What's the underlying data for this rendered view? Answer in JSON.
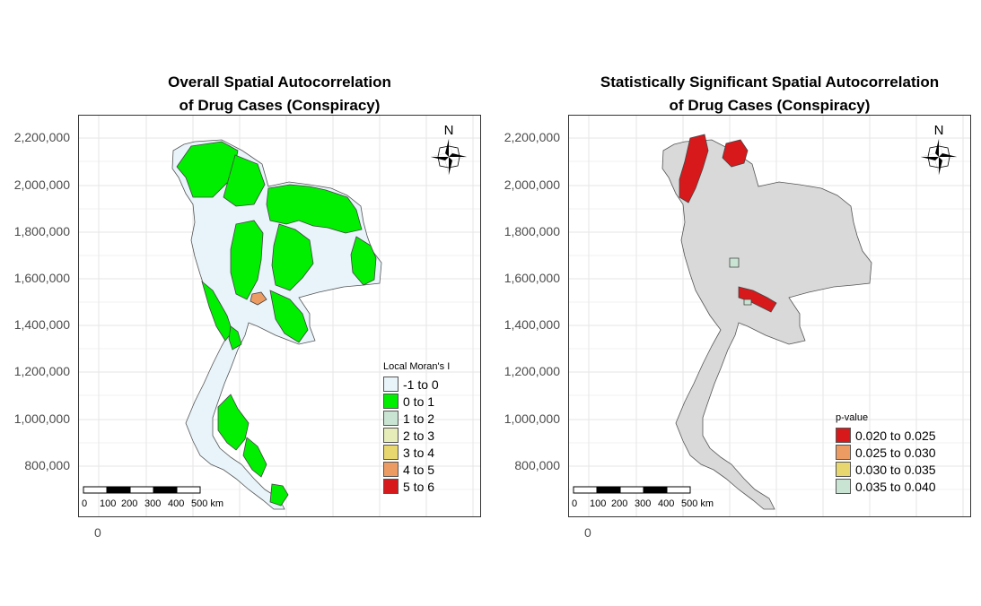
{
  "panels": [
    {
      "title_line1": "Overall Spatial Autocorrelation",
      "title_line2": "of Drug Cases (Conspiracy)",
      "legend_title": "Local Moran's I",
      "legend": [
        {
          "label": "-1 to 0",
          "color": "#e8f4fa"
        },
        {
          "label": "0 to 1",
          "color": "#00ee00"
        },
        {
          "label": "1 to 2",
          "color": "#c9e4d2"
        },
        {
          "label": "2 to 3",
          "color": "#e6edb8"
        },
        {
          "label": "3 to 4",
          "color": "#e7d76e"
        },
        {
          "label": "4 to 5",
          "color": "#ec9c62"
        },
        {
          "label": "5 to 6",
          "color": "#d7191c"
        }
      ],
      "base_color": "#e8f4fa"
    },
    {
      "title_line1": "Statistically Significant Spatial Autocorrelation",
      "title_line2": "of Drug Cases (Conspiracy)",
      "legend_title": "p-value",
      "legend": [
        {
          "label": "0.020 to 0.025",
          "color": "#d7191c"
        },
        {
          "label": "0.025 to 0.030",
          "color": "#ec9c62"
        },
        {
          "label": "0.030 to 0.035",
          "color": "#e7d76e"
        },
        {
          "label": "0.035 to 0.040",
          "color": "#c9e4d2"
        }
      ],
      "base_color": "#d9d9d9"
    }
  ],
  "y_axis_ticks": [
    "2,200,000",
    "2,000,000",
    "1,800,000",
    "1,600,000",
    "1,400,000",
    "1,200,000",
    "1,000,000",
    "800,000"
  ],
  "x_axis_tick": "0",
  "north_label": "N",
  "scale_bar_labels": [
    "0",
    "100",
    "200",
    "300",
    "400",
    "500 km"
  ]
}
